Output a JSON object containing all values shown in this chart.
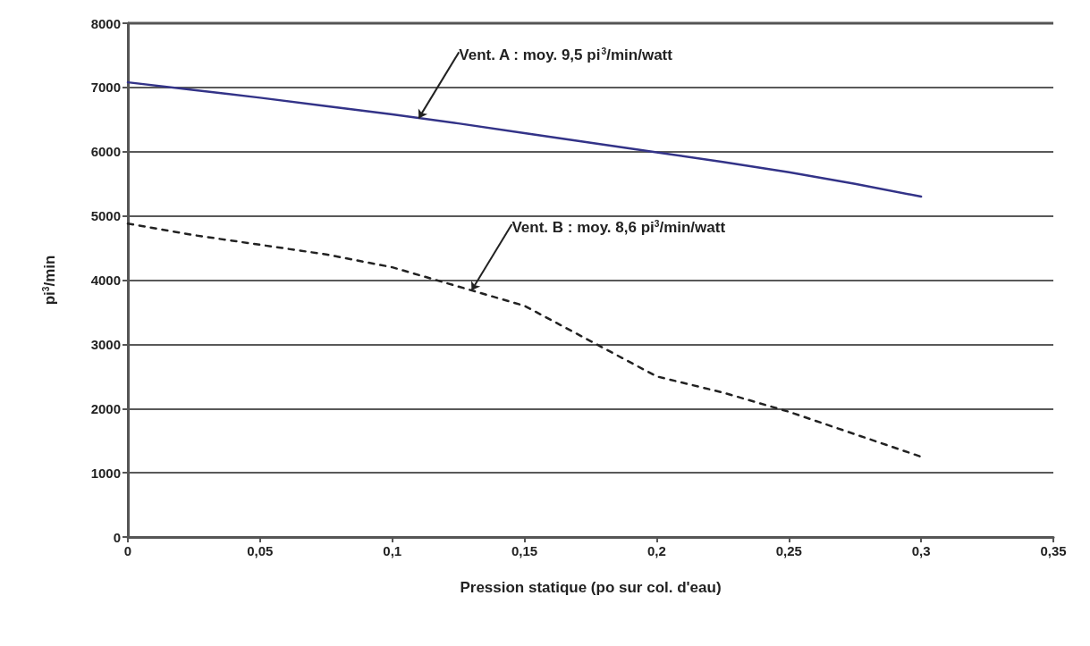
{
  "chart_data": {
    "type": "line",
    "xlabel": "Pression statique (po sur col. d'eau)",
    "ylabel": "pi$^{3}$/min",
    "x": [
      0,
      0.025,
      0.05,
      0.075,
      0.1,
      0.125,
      0.15,
      0.175,
      0.2,
      0.225,
      0.25,
      0.275,
      0.3
    ],
    "series": [
      {
        "color": "#333388",
        "line_style": "solid",
        "values": [
          7080,
          6960,
          6840,
          6710,
          6580,
          6440,
          6290,
          6140,
          5990,
          5840,
          5680,
          5500,
          5300
        ]
      },
      {
        "color": "#222222",
        "line_style": "dashed",
        "values": [
          4880,
          4700,
          4550,
          4400,
          4200,
          3900,
          3600,
          3050,
          2500,
          2250,
          1950,
          1600,
          1250
        ]
      }
    ],
    "annotations": [
      {
        "text": "Vent. A : moy. 9,5 pi$^{3}$/min/watt",
        "x": 0.11,
        "y": 6520
      },
      {
        "text": "Vent. B : moy. 8,6 pi$^{3}$/min/watt",
        "x": 0.13,
        "y": 3840
      }
    ],
    "xlim": [
      0,
      0.35
    ],
    "xticks": [
      {
        "value": 0,
        "label": "0"
      },
      {
        "value": 0.05,
        "label": "0,05"
      },
      {
        "value": 0.1,
        "label": "0,1"
      },
      {
        "value": 0.15,
        "label": "0,15"
      },
      {
        "value": 0.2,
        "label": "0,2"
      },
      {
        "value": 0.25,
        "label": "0,25"
      },
      {
        "value": 0.3,
        "label": "0,3"
      },
      {
        "value": 0.35,
        "label": "0,35"
      }
    ],
    "ylim": [
      0,
      8000
    ],
    "yticks": [
      0,
      1000,
      2000,
      3000,
      4000,
      5000,
      6000,
      7000,
      8000
    ],
    "grid": "y",
    "marker": "none"
  }
}
